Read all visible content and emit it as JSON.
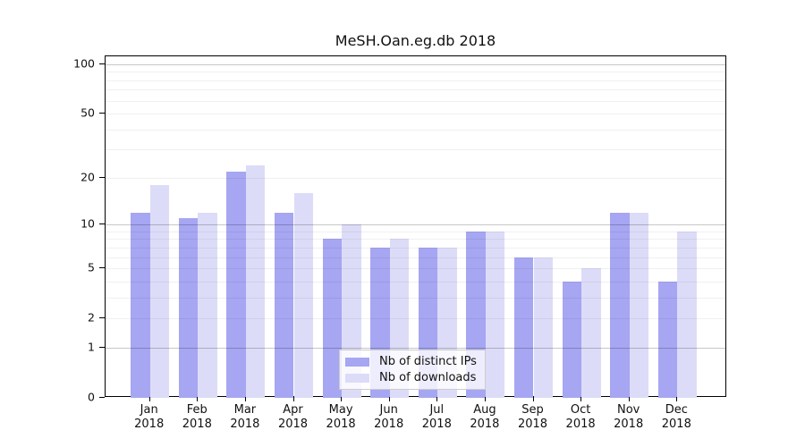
{
  "title": "MeSH.Oan.eg.db 2018",
  "chart_data": {
    "type": "bar",
    "title": "MeSH.Oan.eg.db 2018",
    "xlabel": "",
    "ylabel": "",
    "scale": "log1p",
    "ylim": [
      0,
      100
    ],
    "grid": true,
    "legend_position": "bottom-center-inside",
    "year": "2018",
    "categories": [
      "Jan",
      "Feb",
      "Mar",
      "Apr",
      "May",
      "Jun",
      "Jul",
      "Aug",
      "Sep",
      "Oct",
      "Nov",
      "Dec"
    ],
    "series": [
      {
        "name": "Nb of distinct IPs",
        "color": "#a6a6f2",
        "values": [
          12,
          11,
          22,
          12,
          8,
          7,
          7,
          9,
          6,
          4,
          12,
          4
        ]
      },
      {
        "name": "Nb of downloads",
        "color": "#dcdcf8",
        "values": [
          18,
          12,
          24,
          16,
          10,
          8,
          7,
          9,
          6,
          5,
          12,
          9
        ]
      }
    ],
    "y_ticks": [
      100,
      50,
      20,
      10,
      5,
      2,
      1,
      0
    ],
    "grid_minor": [
      2,
      3,
      4,
      5,
      6,
      7,
      8,
      9,
      20,
      30,
      40,
      50,
      60,
      70,
      80,
      90
    ],
    "grid_major": [
      1,
      10,
      100
    ]
  },
  "colors": {
    "minor_grid": "rgba(0,0,0,0.06)",
    "major_grid": "rgba(0,0,0,0.22)",
    "frame": "#000000",
    "legend_border": "#cccccc",
    "legend_bg": "rgba(255,255,255,0.8)"
  }
}
